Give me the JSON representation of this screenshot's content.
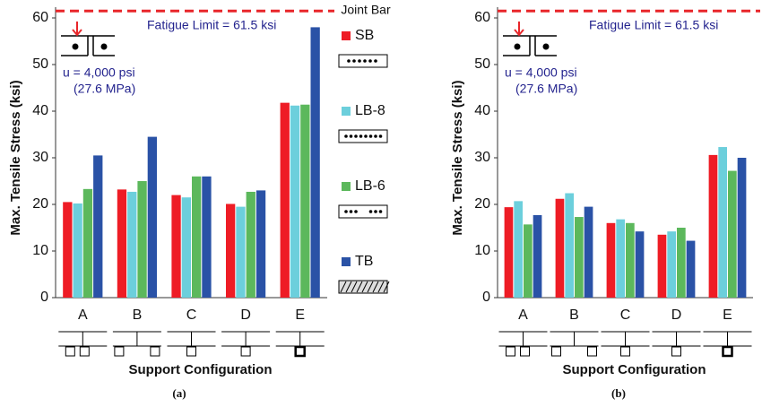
{
  "legend_title": "Joint Bar",
  "chart_data": [
    {
      "type": "bar",
      "label": "(a)",
      "ylabel": "Max. Tensile Stress (ksi)",
      "xlabel": "Support Configuration",
      "annotations": [
        "Fatigue Limit = 61.5 ksi",
        "u = 4,000 psi",
        "(27.6 MPa)"
      ],
      "fatigue_limit": 61.5,
      "categories": [
        "A",
        "B",
        "C",
        "D",
        "E"
      ],
      "series": [
        {
          "name": "SB",
          "color": "#ee1c25",
          "values": [
            20.5,
            23.2,
            22,
            20.1,
            41.8
          ]
        },
        {
          "name": "LB-8",
          "color": "#6ccfdc",
          "values": [
            20.2,
            22.7,
            21.5,
            19.5,
            41.2
          ]
        },
        {
          "name": "LB-6",
          "color": "#5cb85c",
          "values": [
            23.3,
            25,
            26,
            22.7,
            41.4
          ]
        },
        {
          "name": "TB",
          "color": "#2a52a6",
          "values": [
            30.5,
            34.5,
            26,
            23,
            58
          ]
        }
      ],
      "ylim": [
        0,
        62
      ],
      "yticks": [
        0,
        10,
        20,
        30,
        40,
        50,
        60
      ]
    },
    {
      "type": "bar",
      "label": "(b)",
      "ylabel": "Max. Tensile Stress (ksi)",
      "xlabel": "Support Configuration",
      "annotations": [
        "Fatigue Limit = 61.5 ksi",
        "u = 4,000 psi",
        "(27.6 MPa)"
      ],
      "fatigue_limit": 61.5,
      "categories": [
        "A",
        "B",
        "C",
        "D",
        "E"
      ],
      "series": [
        {
          "color": "#ee1c25",
          "values": [
            19.4,
            21.2,
            16,
            13.5,
            30.6
          ]
        },
        {
          "color": "#6ccfdc",
          "values": [
            20.7,
            22.4,
            16.8,
            14.2,
            32.3
          ]
        },
        {
          "color": "#5cb85c",
          "values": [
            15.7,
            17.3,
            16,
            15,
            27.2
          ]
        },
        {
          "color": "#2a52a6",
          "values": [
            17.7,
            19.5,
            14.2,
            12.2,
            30
          ]
        }
      ],
      "ylim": [
        0,
        62
      ],
      "yticks": [
        0,
        10,
        20,
        30,
        40,
        50,
        60
      ]
    }
  ]
}
